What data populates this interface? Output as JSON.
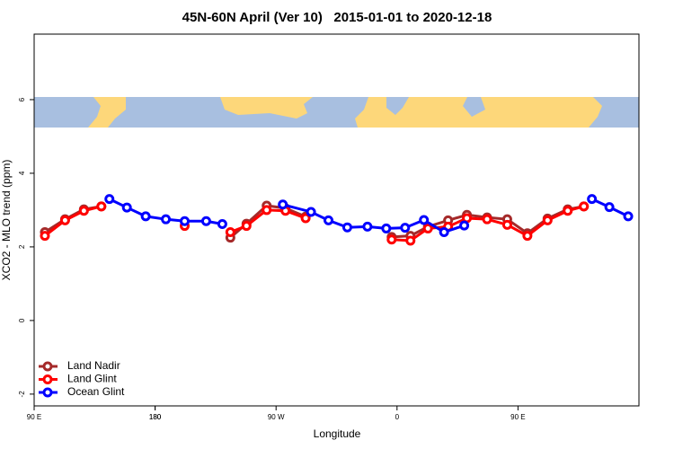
{
  "chart_data": {
    "type": "line",
    "title": "45N-60N April (Ver 10)   2015-01-01 to 2020-12-18",
    "x_label": "Longitude",
    "y_label": "XCO2 - MLO trend (ppm)",
    "xlim": [
      90,
      540
    ],
    "ylim": [
      -2.32,
      7.78
    ],
    "xticks": [
      {
        "value": 90,
        "label": "90 E"
      },
      180,
      {
        "value": 270,
        "label": "90 W"
      },
      {
        "value": 360,
        "label": "0"
      },
      {
        "value": 450,
        "label": "90 E"
      },
      180
    ],
    "yticks": [
      -2,
      0,
      2,
      4,
      6
    ],
    "legend": "bottom-left",
    "series": [
      {
        "name": "Land Nadir",
        "color": "#a52a2a",
        "x": [
          98,
          113,
          127,
          140,
          null,
          236,
          248,
          263,
          277,
          292,
          null,
          356,
          370,
          383,
          398,
          412,
          427,
          442,
          457,
          472,
          487,
          499
        ],
        "values": [
          2.4,
          2.75,
          3.02,
          3.1,
          null,
          2.25,
          2.63,
          3.12,
          3.05,
          2.82,
          null,
          2.27,
          2.3,
          2.55,
          2.72,
          2.87,
          2.8,
          2.75,
          2.37,
          2.77,
          3.02,
          3.1
        ]
      },
      {
        "name": "Land Glint",
        "color": "#ff0000",
        "x": [
          98,
          113,
          127,
          140,
          null,
          202,
          null,
          236,
          248,
          263,
          277,
          292,
          null,
          356,
          370,
          383,
          398,
          412,
          427,
          442,
          457,
          472,
          487,
          499
        ],
        "values": [
          2.3,
          2.72,
          2.98,
          3.1,
          null,
          2.57,
          null,
          2.4,
          2.57,
          3.0,
          2.98,
          2.78,
          null,
          2.2,
          2.17,
          2.5,
          2.55,
          2.78,
          2.75,
          2.6,
          2.3,
          2.72,
          2.98,
          3.1
        ]
      },
      {
        "name": "Ocean Glint",
        "color": "#0000ff",
        "x": [
          146,
          159,
          173,
          188,
          202,
          218,
          230,
          null,
          275,
          296,
          309,
          323,
          338,
          352,
          366,
          380,
          395,
          410,
          null,
          505,
          518,
          532
        ],
        "values": [
          3.3,
          3.07,
          2.83,
          2.75,
          2.7,
          2.7,
          2.62,
          null,
          3.15,
          2.95,
          2.72,
          2.53,
          2.55,
          2.5,
          2.52,
          2.73,
          2.4,
          2.58,
          null,
          3.3,
          3.08,
          2.83
        ]
      }
    ]
  }
}
